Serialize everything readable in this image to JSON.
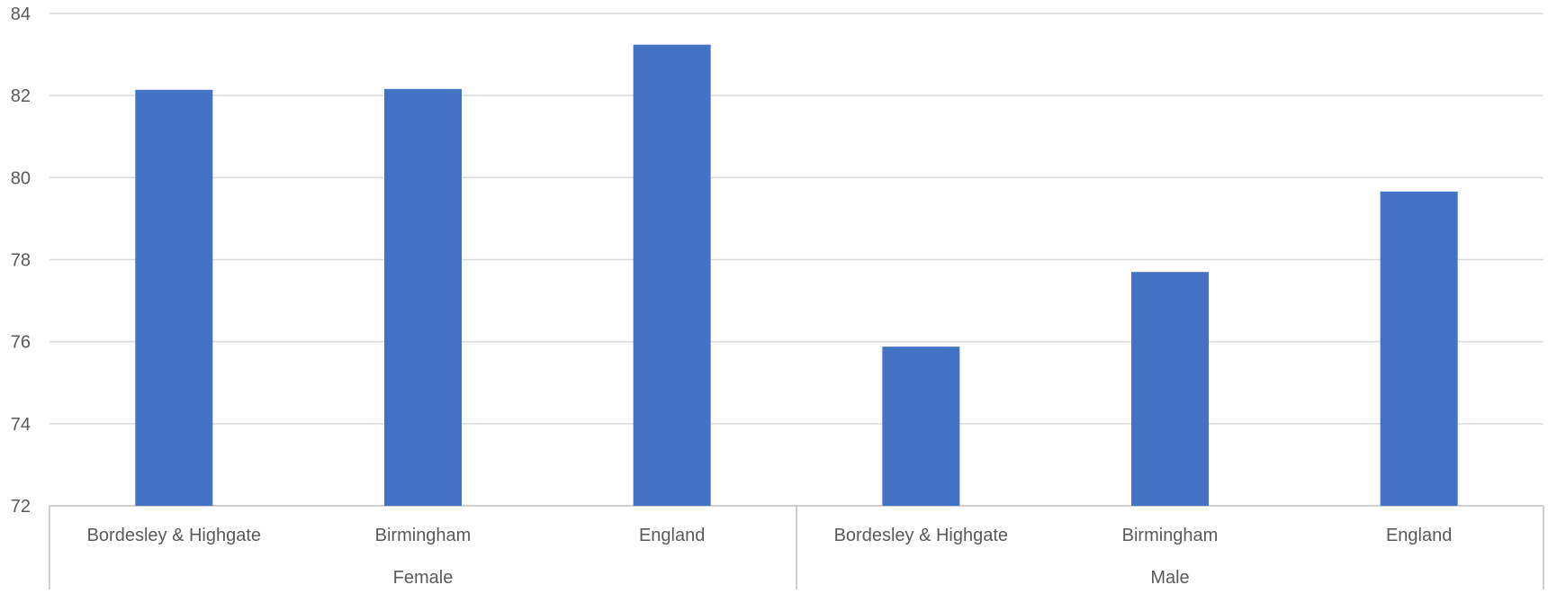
{
  "chart_data": {
    "type": "bar",
    "groups": [
      {
        "label": "Female",
        "categories": [
          "Bordesley & Highgate",
          "Birmingham",
          "England"
        ],
        "values": [
          82.14,
          82.16,
          83.24
        ]
      },
      {
        "label": "Male",
        "categories": [
          "Bordesley & Highgate",
          "Birmingham",
          "England"
        ],
        "values": [
          75.88,
          77.7,
          79.66
        ]
      }
    ],
    "ylim": [
      72,
      84
    ],
    "yticks": [
      72,
      74,
      76,
      78,
      80,
      82,
      84
    ],
    "grid": true,
    "title": "",
    "xlabel": "",
    "ylabel": ""
  },
  "colors": {
    "bar": "#4472c4",
    "grid": "#d9d9d9",
    "axis": "#bfbfbf",
    "text": "#595959"
  }
}
